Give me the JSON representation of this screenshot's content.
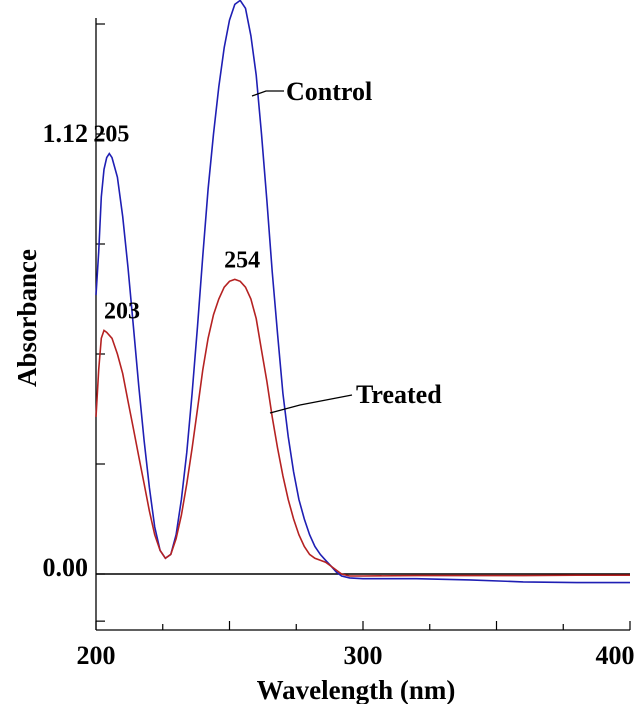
{
  "chart_data": {
    "type": "line",
    "xlabel": "Wavelength (nm)",
    "ylabel": "Absorbance",
    "xlim": [
      200,
      400
    ],
    "x_ticks": [
      200,
      300,
      400
    ],
    "y_tick_labels": [
      "0.00",
      "1.12"
    ],
    "y_tick_values": [
      0.0,
      1.12
    ],
    "grid": false,
    "series": [
      {
        "name": "Control",
        "color": "#1f1fb4",
        "points": [
          [
            200,
            0.71
          ],
          [
            201,
            0.82
          ],
          [
            202,
            0.96
          ],
          [
            203,
            1.03
          ],
          [
            204,
            1.06
          ],
          [
            205,
            1.07
          ],
          [
            206,
            1.06
          ],
          [
            208,
            1.01
          ],
          [
            210,
            0.91
          ],
          [
            212,
            0.78
          ],
          [
            214,
            0.63
          ],
          [
            216,
            0.48
          ],
          [
            218,
            0.34
          ],
          [
            220,
            0.22
          ],
          [
            222,
            0.12
          ],
          [
            224,
            0.06
          ],
          [
            226,
            0.04
          ],
          [
            228,
            0.05
          ],
          [
            230,
            0.1
          ],
          [
            232,
            0.19
          ],
          [
            234,
            0.31
          ],
          [
            236,
            0.46
          ],
          [
            238,
            0.63
          ],
          [
            240,
            0.81
          ],
          [
            242,
            0.98
          ],
          [
            244,
            1.12
          ],
          [
            246,
            1.24
          ],
          [
            248,
            1.34
          ],
          [
            250,
            1.41
          ],
          [
            252,
            1.45
          ],
          [
            254,
            1.46
          ],
          [
            256,
            1.44
          ],
          [
            258,
            1.37
          ],
          [
            260,
            1.27
          ],
          [
            262,
            1.12
          ],
          [
            264,
            0.95
          ],
          [
            266,
            0.77
          ],
          [
            268,
            0.61
          ],
          [
            270,
            0.46
          ],
          [
            272,
            0.35
          ],
          [
            274,
            0.26
          ],
          [
            276,
            0.19
          ],
          [
            278,
            0.14
          ],
          [
            280,
            0.1
          ],
          [
            282,
            0.07
          ],
          [
            284,
            0.05
          ],
          [
            286,
            0.035
          ],
          [
            288,
            0.02
          ],
          [
            290,
            0.005
          ],
          [
            292,
            -0.005
          ],
          [
            295,
            -0.01
          ],
          [
            300,
            -0.012
          ],
          [
            320,
            -0.012
          ],
          [
            340,
            -0.015
          ],
          [
            360,
            -0.02
          ],
          [
            380,
            -0.022
          ],
          [
            400,
            -0.022
          ]
        ]
      },
      {
        "name": "Treated",
        "color": "#b52222",
        "points": [
          [
            200,
            0.4
          ],
          [
            201,
            0.52
          ],
          [
            202,
            0.6
          ],
          [
            203,
            0.62
          ],
          [
            204,
            0.615
          ],
          [
            206,
            0.6
          ],
          [
            208,
            0.56
          ],
          [
            210,
            0.51
          ],
          [
            212,
            0.44
          ],
          [
            214,
            0.37
          ],
          [
            216,
            0.3
          ],
          [
            218,
            0.23
          ],
          [
            220,
            0.16
          ],
          [
            222,
            0.1
          ],
          [
            224,
            0.06
          ],
          [
            226,
            0.04
          ],
          [
            228,
            0.05
          ],
          [
            230,
            0.09
          ],
          [
            232,
            0.15
          ],
          [
            234,
            0.23
          ],
          [
            236,
            0.32
          ],
          [
            238,
            0.42
          ],
          [
            240,
            0.52
          ],
          [
            242,
            0.6
          ],
          [
            244,
            0.66
          ],
          [
            246,
            0.7
          ],
          [
            248,
            0.73
          ],
          [
            250,
            0.745
          ],
          [
            252,
            0.75
          ],
          [
            254,
            0.745
          ],
          [
            256,
            0.73
          ],
          [
            258,
            0.7
          ],
          [
            260,
            0.65
          ],
          [
            262,
            0.57
          ],
          [
            264,
            0.49
          ],
          [
            266,
            0.4
          ],
          [
            268,
            0.32
          ],
          [
            270,
            0.25
          ],
          [
            272,
            0.19
          ],
          [
            274,
            0.14
          ],
          [
            276,
            0.1
          ],
          [
            278,
            0.07
          ],
          [
            280,
            0.05
          ],
          [
            282,
            0.04
          ],
          [
            284,
            0.035
          ],
          [
            286,
            0.03
          ],
          [
            288,
            0.02
          ],
          [
            290,
            0.01
          ],
          [
            292,
            0.0
          ],
          [
            295,
            -0.005
          ],
          [
            300,
            -0.005
          ],
          [
            320,
            -0.004
          ],
          [
            340,
            -0.004
          ],
          [
            360,
            -0.004
          ],
          [
            380,
            -0.003
          ],
          [
            400,
            -0.003
          ]
        ]
      }
    ],
    "annotations": [
      {
        "text": "205",
        "x": 205,
        "y": 1.07
      },
      {
        "text": "254",
        "x": 254,
        "y": 1.46
      },
      {
        "text": "203",
        "x": 203,
        "y": 0.62
      },
      {
        "text": "254",
        "x": 254,
        "y": 0.75
      }
    ],
    "series_labels": [
      "Control",
      "Treated"
    ]
  }
}
